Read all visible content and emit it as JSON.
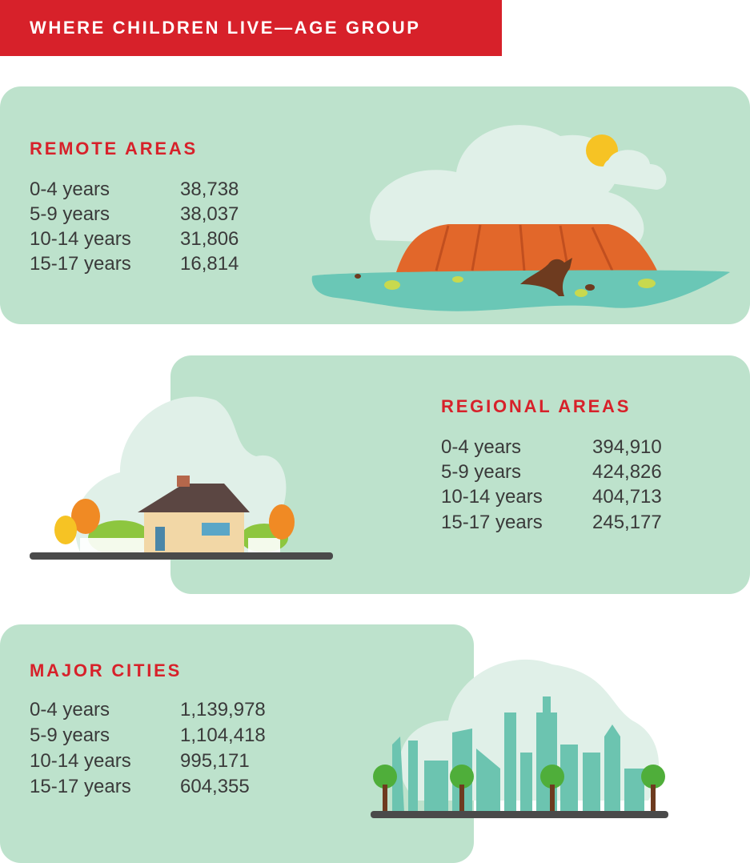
{
  "header": {
    "title": "WHERE CHILDREN LIVE—AGE GROUP"
  },
  "sections": [
    {
      "title": "REMOTE AREAS",
      "rows": [
        {
          "label": "0-4 years",
          "value": "38,738"
        },
        {
          "label": "5-9 years",
          "value": "38,037"
        },
        {
          "label": "10-14 years",
          "value": "31,806"
        },
        {
          "label": "15-17 years",
          "value": "16,814"
        }
      ]
    },
    {
      "title": "REGIONAL AREAS",
      "rows": [
        {
          "label": "0-4 years",
          "value": "394,910"
        },
        {
          "label": "5-9 years",
          "value": "424,826"
        },
        {
          "label": "10-14 years",
          "value": "404,713"
        },
        {
          "label": "15-17 years",
          "value": "245,177"
        }
      ]
    },
    {
      "title": "MAJOR CITIES",
      "rows": [
        {
          "label": "0-4 years",
          "value": "1,139,978"
        },
        {
          "label": "5-9 years",
          "value": "1,104,418"
        },
        {
          "label": "10-14 years",
          "value": "995,171"
        },
        {
          "label": "15-17 years",
          "value": "604,355"
        }
      ]
    }
  ]
}
